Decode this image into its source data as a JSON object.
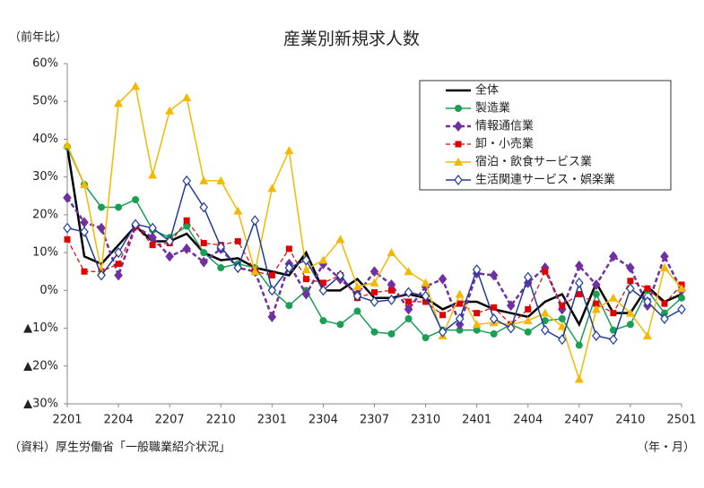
{
  "chart_data": {
    "type": "line",
    "title": "産業別新規求人数",
    "y_label": "（前年比）",
    "x_label": "（年・月）",
    "source": "（資料）厚生労働省「一般職業紹介状況」",
    "categories": [
      "2201",
      null,
      null,
      "2204",
      null,
      null,
      "2207",
      null,
      null,
      "2210",
      null,
      null,
      "2301",
      null,
      null,
      "2304",
      null,
      null,
      "2307",
      null,
      null,
      "2310",
      null,
      null,
      "2401",
      null,
      null,
      "2404",
      null,
      null,
      "2407",
      null,
      null,
      "2410",
      null,
      null,
      "2501"
    ],
    "ylim": [
      -30,
      60
    ],
    "yticks": [
      {
        "value": -30,
        "label": "▲30%"
      },
      {
        "value": -20,
        "label": "▲20%"
      },
      {
        "value": -10,
        "label": "▲10%"
      },
      {
        "value": 0,
        "label": "0%"
      },
      {
        "value": 10,
        "label": "10%"
      },
      {
        "value": 20,
        "label": "20%"
      },
      {
        "value": 30,
        "label": "30%"
      },
      {
        "value": 40,
        "label": "40%"
      },
      {
        "value": 50,
        "label": "50%"
      },
      {
        "value": 60,
        "label": "60%"
      }
    ],
    "grid": false,
    "legend": "upper right",
    "series": [
      {
        "name": "全体",
        "color": "#000000",
        "marker": "none",
        "dash": false,
        "width": 2.5,
        "values": [
          38,
          9,
          7,
          12,
          17,
          13,
          13,
          15,
          10,
          8,
          8.5,
          6,
          5,
          4,
          10,
          0,
          0,
          3,
          -2,
          -2,
          -1,
          -2,
          -5,
          -3,
          -3,
          -5,
          -6,
          -7,
          -3,
          -1,
          -9,
          2,
          -6,
          -6,
          1,
          -3,
          -1
        ]
      },
      {
        "name": "製造業",
        "color": "#1a9f55",
        "marker": "circle",
        "dash": false,
        "width": 1.5,
        "values": [
          38,
          28,
          22,
          22,
          24,
          16,
          14,
          17,
          10,
          6,
          7,
          6,
          0,
          -4,
          0,
          -8,
          -9,
          -5.5,
          -11,
          -11.5,
          -7.5,
          -12.5,
          -10.5,
          -10.5,
          -10.5,
          -11.5,
          -9,
          -11,
          -8,
          -7.5,
          -14.5,
          -1,
          -10.5,
          -9,
          0,
          -6,
          -2
        ]
      },
      {
        "name": "情報通信業",
        "color": "#7030a0",
        "marker": "diamond",
        "dash": true,
        "width": 2.5,
        "values": [
          24.5,
          18,
          16.5,
          4,
          17,
          14,
          9,
          11,
          7.5,
          11,
          6,
          5,
          -7,
          7,
          -1,
          7,
          3,
          -1,
          5,
          1.5,
          -5,
          1,
          3,
          -9,
          4.5,
          4,
          -4,
          2,
          6,
          -5,
          6.5,
          1.5,
          9,
          6,
          -4,
          9,
          0
        ]
      },
      {
        "name": "卸・小売業",
        "color": "#e00000",
        "marker": "square",
        "dash": true,
        "width": 1.2,
        "values": [
          13.5,
          5,
          5,
          7,
          17,
          12,
          12.5,
          18.5,
          12.5,
          12,
          13,
          5,
          4,
          11,
          3,
          2,
          4,
          -2,
          -0.5,
          0,
          -3,
          -3,
          -6.5,
          -3.5,
          -6,
          -4.5,
          -9,
          -5,
          5,
          -4,
          -1,
          -3.5,
          -6,
          2.5,
          0.5,
          -3.5,
          1.5
        ]
      },
      {
        "name": "宿泊・飲食サービス業",
        "color": "#f5b800",
        "marker": "triangle",
        "dash": false,
        "width": 1.5,
        "values": [
          38.5,
          28,
          5,
          49.5,
          54,
          30.5,
          47.5,
          51,
          29,
          29,
          21,
          5,
          27,
          37,
          5.5,
          8,
          13.5,
          1,
          2,
          10,
          5,
          2,
          -12,
          -1,
          -9,
          -8.5,
          -9,
          -8,
          -6,
          -9.5,
          -23.5,
          -5,
          -2,
          -6,
          -12,
          6,
          0.5
        ]
      },
      {
        "name": "生活関連サービス・娯楽業",
        "color": "#1f3c9c",
        "marker": "open-diamond",
        "dash": false,
        "width": 1.5,
        "values": [
          16.5,
          15.5,
          4,
          10,
          17.5,
          16.5,
          13,
          29,
          22,
          11.5,
          6,
          18.5,
          0,
          6,
          8,
          0,
          4,
          -1.5,
          -3,
          -2.5,
          -0.5,
          -1.5,
          -11,
          -7.5,
          5.5,
          -7.5,
          -10,
          3.5,
          -10.5,
          -13,
          2,
          -12,
          -13,
          0.5,
          -3,
          -7.5,
          -5
        ]
      }
    ]
  }
}
